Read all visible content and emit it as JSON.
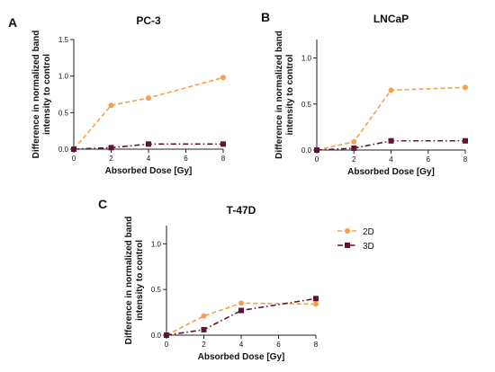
{
  "figure": {
    "legend": [
      {
        "name": "2D",
        "color": "#f5a04a",
        "marker": "circle",
        "dash": "dashed"
      },
      {
        "name": "3D",
        "color": "#5c1438",
        "marker": "square",
        "dash": "dashdot"
      }
    ]
  },
  "chart_data": [
    {
      "letter": "A",
      "type": "line",
      "title": "PC-3",
      "xlabel": "Absorbed Dose [Gy]",
      "ylabel": [
        "Difference in normalized band",
        "intensity to control"
      ],
      "xlim": [
        0,
        8
      ],
      "ylim": [
        0,
        1.5
      ],
      "xticks": [
        0,
        2,
        4,
        6,
        8
      ],
      "yticks": [
        0.0,
        0.5,
        1.0,
        1.5
      ],
      "ytick_labels": [
        "0.0",
        "0.5",
        "1.0",
        "1.5"
      ],
      "x": [
        0,
        2,
        4,
        8
      ],
      "series": [
        {
          "name": "2D",
          "values": [
            0.0,
            0.6,
            0.7,
            0.98
          ]
        },
        {
          "name": "3D",
          "values": [
            0.0,
            0.02,
            0.07,
            0.07
          ]
        }
      ]
    },
    {
      "letter": "B",
      "type": "line",
      "title": "LNCaP",
      "xlabel": "Absorbed Dose [Gy]",
      "ylabel": [
        "Difference in normalized band",
        "intensity to control"
      ],
      "xlim": [
        0,
        8
      ],
      "ylim": [
        0,
        1.2
      ],
      "xticks": [
        0,
        2,
        4,
        6,
        8
      ],
      "yticks": [
        0.0,
        0.5,
        1.0
      ],
      "ytick_labels": [
        "0.0",
        "0.5",
        "1.0"
      ],
      "x": [
        0,
        2,
        4,
        8
      ],
      "series": [
        {
          "name": "2D",
          "values": [
            0.0,
            0.09,
            0.65,
            0.68
          ]
        },
        {
          "name": "3D",
          "values": [
            0.0,
            0.02,
            0.1,
            0.1
          ]
        }
      ]
    },
    {
      "letter": "C",
      "type": "line",
      "title": "T-47D",
      "xlabel": "Absorbed Dose [Gy]",
      "ylabel": [
        "Difference in normalized band",
        "intensity to control"
      ],
      "xlim": [
        0,
        8
      ],
      "ylim": [
        0,
        1.2
      ],
      "xticks": [
        0,
        2,
        4,
        6,
        8
      ],
      "yticks": [
        0.0,
        0.5,
        1.0
      ],
      "ytick_labels": [
        "0.0",
        "0.5",
        "1.0"
      ],
      "x": [
        0,
        2,
        4,
        8
      ],
      "series": [
        {
          "name": "2D",
          "values": [
            0.0,
            0.21,
            0.35,
            0.34
          ]
        },
        {
          "name": "3D",
          "values": [
            0.0,
            0.06,
            0.27,
            0.4
          ]
        }
      ]
    }
  ]
}
